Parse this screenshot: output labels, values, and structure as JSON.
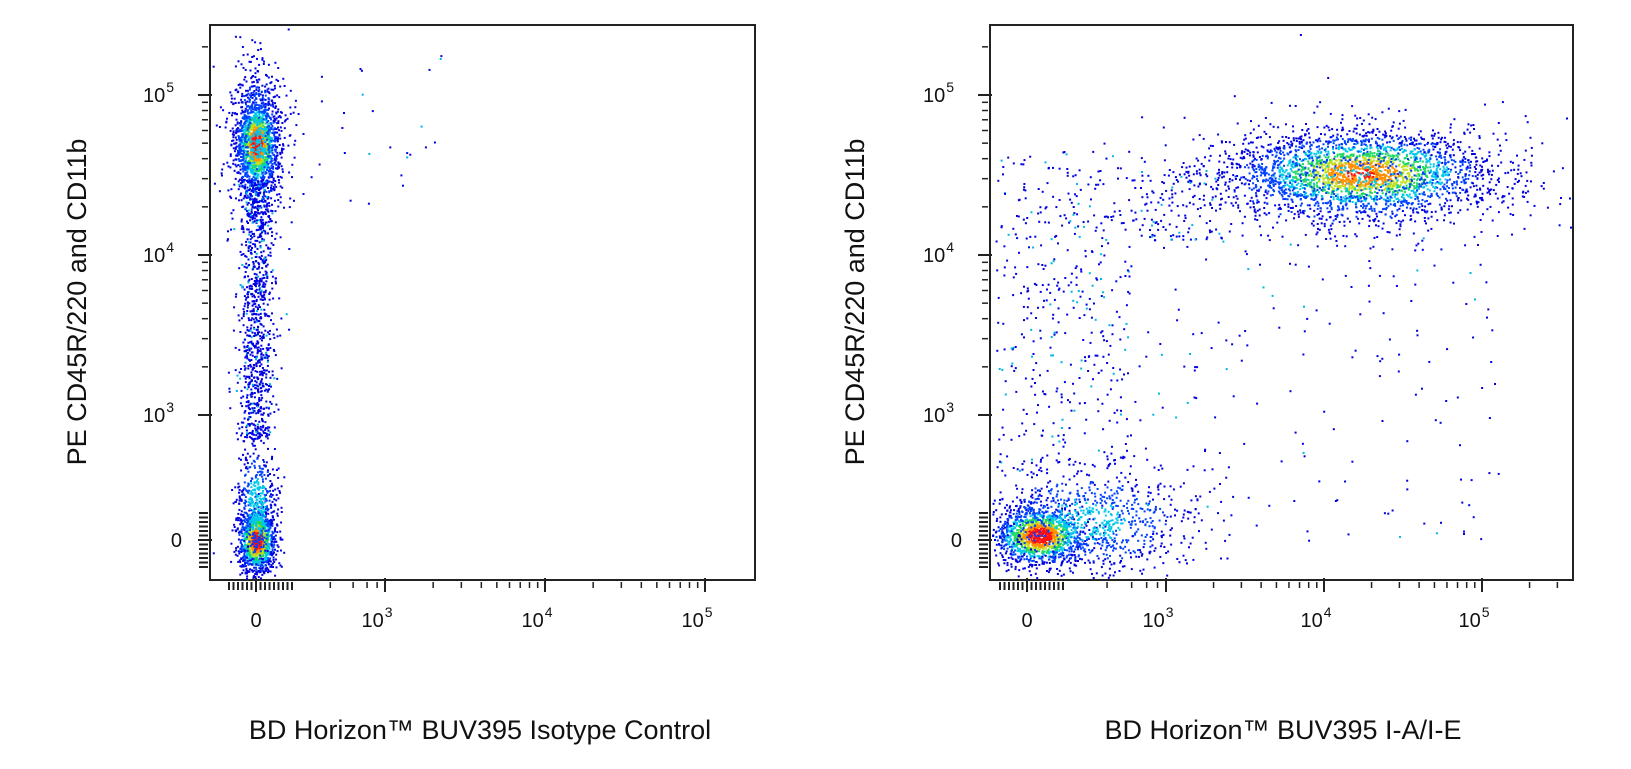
{
  "chart_data": [
    {
      "type": "scatter",
      "subtype": "flow-cytometry-density-dot-plot",
      "title": "",
      "xlabel": "BD Horizon™ BUV395 Isotype Control",
      "ylabel": "PE CD45R/220 and CD11b",
      "x_scale": "biexponential",
      "y_scale": "biexponential",
      "x_ticks": [
        {
          "value": 0,
          "base": "0",
          "exp": ""
        },
        {
          "value": 1000,
          "base": "10",
          "exp": "3"
        },
        {
          "value": 10000,
          "base": "10",
          "exp": "4"
        },
        {
          "value": 100000,
          "base": "10",
          "exp": "5"
        }
      ],
      "y_ticks": [
        {
          "value": 0,
          "base": "0",
          "exp": ""
        },
        {
          "value": 1000,
          "base": "10",
          "exp": "3"
        },
        {
          "value": 10000,
          "base": "10",
          "exp": "4"
        },
        {
          "value": 100000,
          "base": "10",
          "exp": "5"
        }
      ],
      "xlim": [
        -200,
        250000
      ],
      "ylim": [
        -200,
        250000
      ],
      "color_scale": "density: blue (low) → cyan → green → yellow → red (high)",
      "populations": [
        {
          "name": "",
          "x_center": 0,
          "y_center": 50000,
          "density": "high",
          "points": 2600
        },
        {
          "name": "",
          "x_center": 0,
          "y_center": 0,
          "density": "high",
          "points": 1800
        },
        {
          "name": "",
          "x_center": 0,
          "y_center_range": [
            500,
            30000
          ],
          "density": "low",
          "points": 900
        }
      ]
    },
    {
      "type": "scatter",
      "subtype": "flow-cytometry-density-dot-plot",
      "title": "",
      "xlabel": "BD Horizon™ BUV395 I-A/I-E",
      "ylabel": "PE CD45R/220 and CD11b",
      "x_scale": "biexponential",
      "y_scale": "biexponential",
      "x_ticks": [
        {
          "value": 0,
          "base": "0",
          "exp": ""
        },
        {
          "value": 1000,
          "base": "10",
          "exp": "3"
        },
        {
          "value": 10000,
          "base": "10",
          "exp": "4"
        },
        {
          "value": 100000,
          "base": "10",
          "exp": "5"
        }
      ],
      "y_ticks": [
        {
          "value": 0,
          "base": "0",
          "exp": ""
        },
        {
          "value": 1000,
          "base": "10",
          "exp": "3"
        },
        {
          "value": 10000,
          "base": "10",
          "exp": "4"
        },
        {
          "value": 100000,
          "base": "10",
          "exp": "5"
        }
      ],
      "xlim": [
        -200,
        250000
      ],
      "ylim": [
        -200,
        250000
      ],
      "color_scale": "density: blue (low) → cyan → green → yellow → red (high)",
      "populations": [
        {
          "name": "",
          "x_center": 15000,
          "y_center": 35000,
          "density": "high",
          "points": 3200
        },
        {
          "name": "",
          "x_center": 0,
          "y_center": 0,
          "density": "high",
          "points": 2200
        },
        {
          "name": "",
          "x_center_range": [
            0,
            200000
          ],
          "y_center_range": [
            0,
            30000
          ],
          "density": "low",
          "points": 800
        }
      ]
    }
  ]
}
